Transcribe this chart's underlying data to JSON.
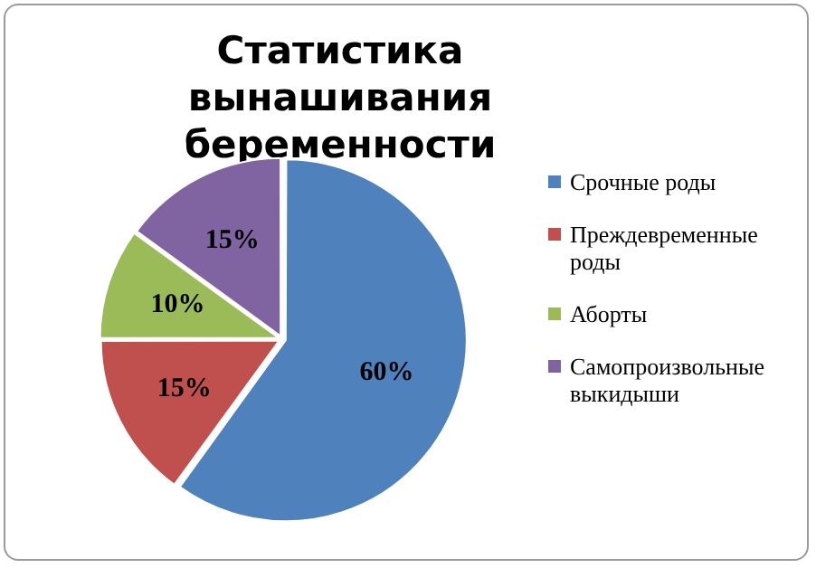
{
  "chart_data": {
    "type": "pie",
    "title": "Статистика вынашивания беременности",
    "categories": [
      "Срочные роды",
      "Преждевременные роды",
      "Аборты",
      "Самопроизвольные выкидыши"
    ],
    "values": [
      60,
      15,
      10,
      15
    ],
    "colors": [
      "#4f81bd",
      "#c0504d",
      "#9bbb59",
      "#8064a2"
    ],
    "value_labels": [
      "60%",
      "15%",
      "10%",
      "15%"
    ],
    "legend": "right"
  }
}
